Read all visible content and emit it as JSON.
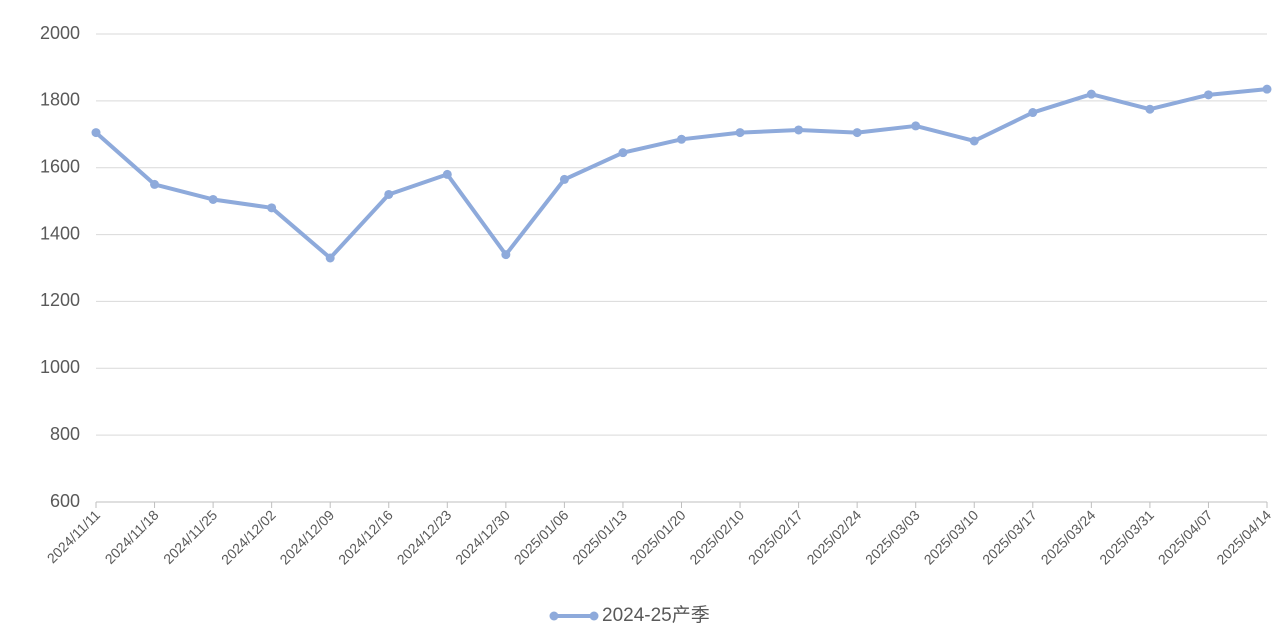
{
  "chart_data": {
    "type": "line",
    "x": [
      "2024/11/11",
      "2024/11/18",
      "2024/11/25",
      "2024/12/02",
      "2024/12/09",
      "2024/12/16",
      "2024/12/23",
      "2024/12/30",
      "2025/01/06",
      "2025/01/13",
      "2025/01/20",
      "2025/02/10",
      "2025/02/17",
      "2025/02/24",
      "2025/03/03",
      "2025/03/10",
      "2025/03/17",
      "2025/03/24",
      "2025/03/31",
      "2025/04/07",
      "2025/04/14"
    ],
    "series": [
      {
        "name": "2024-25产季",
        "color": "#8eaadb",
        "values": [
          1705,
          1550,
          1505,
          1480,
          1330,
          1520,
          1580,
          1340,
          1565,
          1645,
          1685,
          1705,
          1713,
          1705,
          1725,
          1680,
          1765,
          1820,
          1775,
          1818,
          1835
        ]
      }
    ],
    "ylim": [
      600,
      2000
    ],
    "yticks": [
      600,
      800,
      1000,
      1200,
      1400,
      1600,
      1800,
      2000
    ],
    "grid": true,
    "legend": "bottom"
  }
}
